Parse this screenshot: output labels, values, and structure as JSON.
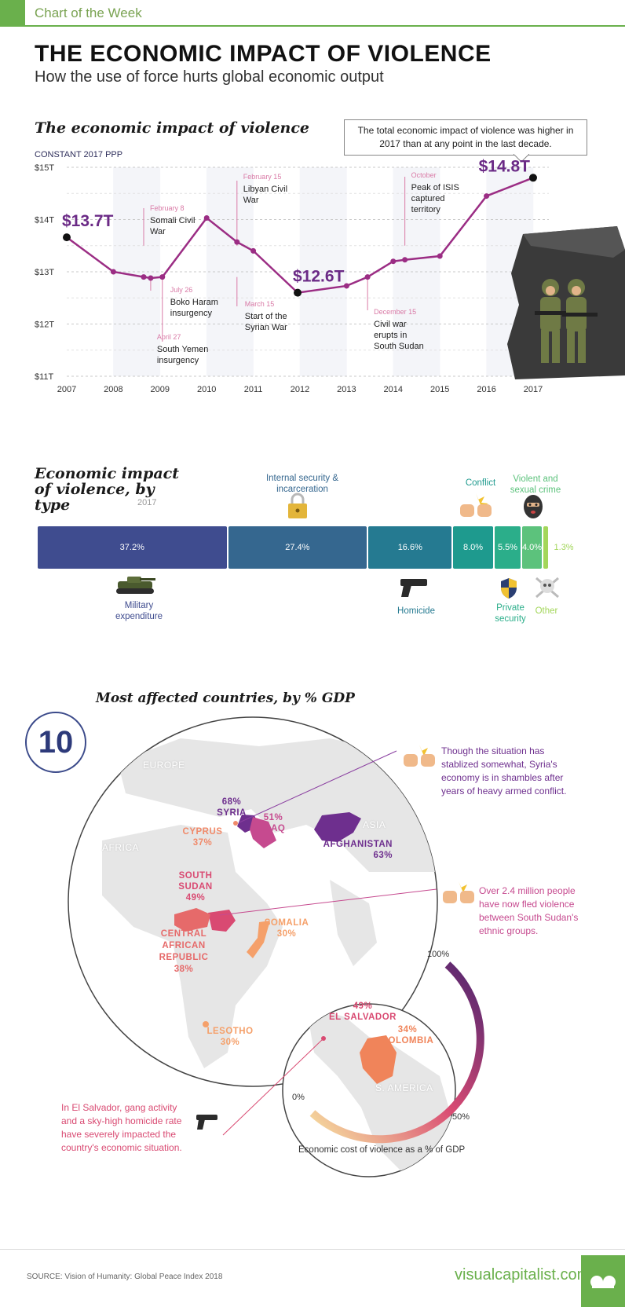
{
  "header": {
    "tag": "Chart of the Week",
    "title": "THE ECONOMIC IMPACT OF VIOLENCE",
    "subtitle": "How the use of force hurts global economic output"
  },
  "chart_data": [
    {
      "type": "line",
      "title": "The economic impact of violence",
      "ylabel": "CONSTANT 2017 PPP",
      "x": [
        "2007",
        "2008",
        "2009",
        "2010",
        "2011",
        "2012",
        "2013",
        "2014",
        "2015",
        "2016",
        "2017"
      ],
      "xticks": [
        "2007",
        "2008",
        "2009",
        "2010",
        "2011",
        "2012",
        "2013",
        "2014",
        "2015",
        "2016",
        "2017"
      ],
      "yticks": [
        "$11T",
        "$12T",
        "$13T",
        "$14T",
        "$15T"
      ],
      "ylim": [
        11,
        15
      ],
      "points": [
        {
          "x": 2007.0,
          "y": 13.66
        },
        {
          "x": 2008.0,
          "y": 13.0
        },
        {
          "x": 2008.65,
          "y": 12.9
        },
        {
          "x": 2008.8,
          "y": 12.88
        },
        {
          "x": 2009.05,
          "y": 12.9
        },
        {
          "x": 2010.0,
          "y": 14.03
        },
        {
          "x": 2010.65,
          "y": 13.57
        },
        {
          "x": 2011.0,
          "y": 13.4
        },
        {
          "x": 2011.95,
          "y": 12.6
        },
        {
          "x": 2013.0,
          "y": 12.73
        },
        {
          "x": 2013.45,
          "y": 12.9
        },
        {
          "x": 2014.0,
          "y": 13.2
        },
        {
          "x": 2014.25,
          "y": 13.23
        },
        {
          "x": 2015.0,
          "y": 13.3
        },
        {
          "x": 2016.0,
          "y": 14.45
        },
        {
          "x": 2017.0,
          "y": 14.8
        }
      ],
      "highlights": [
        {
          "label": "$13.7T",
          "x": 2007.0,
          "y": 13.66
        },
        {
          "label": "$12.6T",
          "x": 2011.95,
          "y": 12.6
        },
        {
          "label": "$14.8T",
          "x": 2017.0,
          "y": 14.8
        }
      ],
      "events": [
        {
          "date": "February 8",
          "text": "Somali Civil War"
        },
        {
          "date": "July 26",
          "text": "Boko Haram insurgency"
        },
        {
          "date": "April 27",
          "text": "South Yemen insurgency"
        },
        {
          "date": "February 15",
          "text": "Libyan Civil War"
        },
        {
          "date": "March 15",
          "text": "Start of the Syrian War"
        },
        {
          "date": "December 15",
          "text": "Civil war erupts in South Sudan"
        },
        {
          "date": "October",
          "text": "Peak of ISIS captured territory"
        }
      ],
      "callout": "The total economic impact of violence was higher in 2017 than at any point in the last decade."
    },
    {
      "type": "bar",
      "title": "Economic impact of violence, by type",
      "year": "2017",
      "categories": [
        "Military expenditure",
        "Internal security & incarceration",
        "Homicide",
        "Conflict",
        "Private security",
        "Violent and sexual crime",
        "Other"
      ],
      "values": [
        37.2,
        27.4,
        16.6,
        8.0,
        5.5,
        4.0,
        1.3
      ],
      "labels": [
        "37.2%",
        "27.4%",
        "16.6%",
        "8.0%",
        "5.5%",
        "4.0%",
        "1.3%"
      ],
      "colors": [
        "#3f4c8f",
        "#35678f",
        "#257a91",
        "#1e9a8e",
        "#2bae8a",
        "#5cc27c",
        "#a3d65a"
      ]
    }
  ],
  "countries_section": {
    "number": "10",
    "title": "Most affected countries, by % GDP",
    "regions": [
      "EUROPE",
      "AFRICA",
      "ASIA",
      "S. AMERICA"
    ],
    "countries": [
      {
        "name": "SYRIA",
        "pct": "68%"
      },
      {
        "name": "IRAQ",
        "pct": "51%"
      },
      {
        "name": "CYPRUS",
        "pct": "37%"
      },
      {
        "name": "AFGHANISTAN",
        "pct": "63%"
      },
      {
        "name": "SOUTH SUDAN",
        "pct": "49%"
      },
      {
        "name": "SOMALIA",
        "pct": "30%"
      },
      {
        "name": "CENTRAL AFRICAN REPUBLIC",
        "pct": "38%"
      },
      {
        "name": "LESOTHO",
        "pct": "30%"
      },
      {
        "name": "EL SALVADOR",
        "pct": "49%"
      },
      {
        "name": "COLOMBIA",
        "pct": "34%"
      }
    ],
    "notes": {
      "syria": "Though the situation has stablized somewhat, Syria's economy is in shambles after years of heavy armed conflict.",
      "south_sudan": "Over 2.4 million people have now fled violence between South Sudan's ethnic groups.",
      "el_salvador": "In El Salvador, gang activity and a sky-high homicide rate have severely impacted the country's economic situation."
    },
    "scale": {
      "min": "0%",
      "mid": "50%",
      "max": "100%",
      "caption": "Economic cost of violence as a % of GDP"
    }
  },
  "footer": {
    "source": "SOURCE: Vision of Humanity: Global Peace Index 2018",
    "brand": "visualcapitalist.com"
  },
  "icons": [
    "tank-icon",
    "lock-icon",
    "gun-icon",
    "fist-bump-icon",
    "shield-icon",
    "balaclava-icon",
    "skull-icon",
    "soldiers-illustration"
  ]
}
